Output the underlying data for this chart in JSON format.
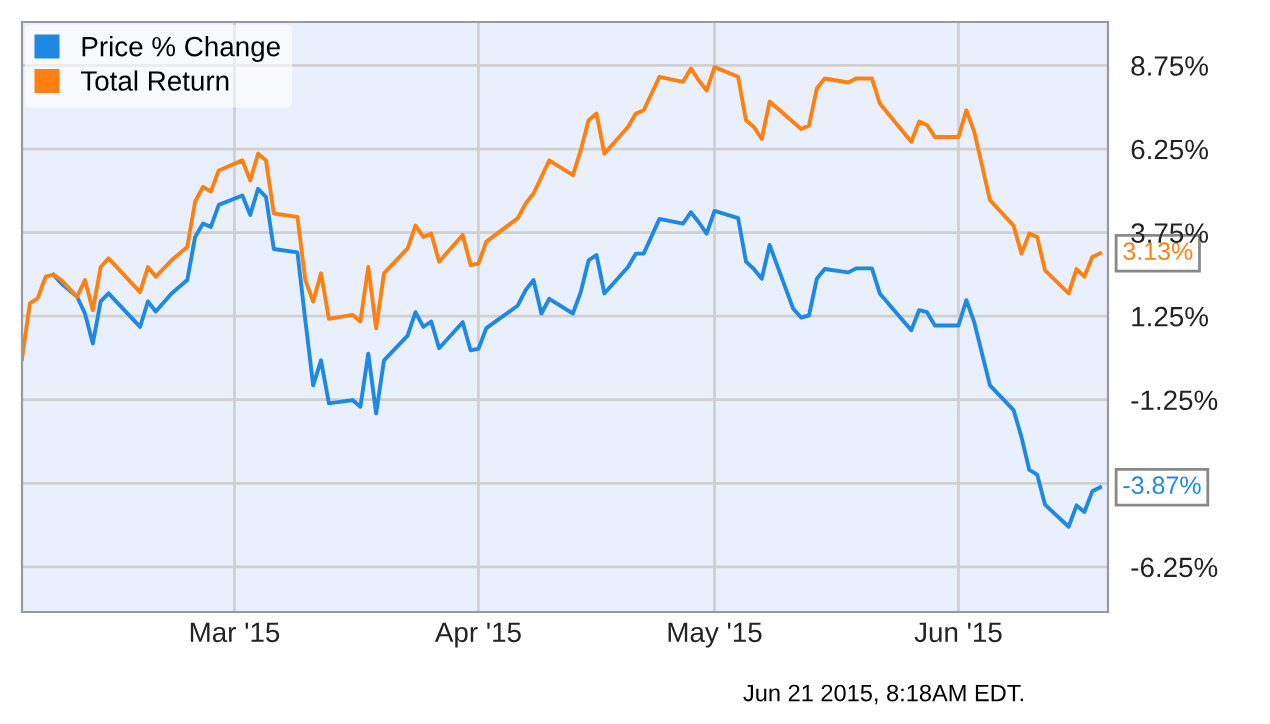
{
  "chart_data": {
    "type": "line",
    "series": [
      {
        "name": "Price % Change",
        "color": "#1e88e5",
        "x": [
          "2015-02-06",
          "2015-02-07",
          "2015-02-09",
          "2015-02-10",
          "2015-02-11",
          "2015-02-12",
          "2015-02-13",
          "2015-02-15",
          "2015-02-17",
          "2015-02-18",
          "2015-02-19",
          "2015-02-21",
          "2015-02-23",
          "2015-02-24",
          "2015-02-25",
          "2015-02-26",
          "2015-02-27",
          "2015-03-02",
          "2015-03-03",
          "2015-03-04",
          "2015-03-05",
          "2015-03-06",
          "2015-03-09",
          "2015-03-10",
          "2015-03-11",
          "2015-03-12",
          "2015-03-13",
          "2015-03-16",
          "2015-03-17",
          "2015-03-18",
          "2015-03-19",
          "2015-03-20",
          "2015-03-23",
          "2015-03-24",
          "2015-03-25",
          "2015-03-26",
          "2015-03-27",
          "2015-03-30",
          "2015-03-31",
          "2015-04-01",
          "2015-04-02",
          "2015-04-06",
          "2015-04-07",
          "2015-04-08",
          "2015-04-09",
          "2015-04-10",
          "2015-04-13",
          "2015-04-14",
          "2015-04-15",
          "2015-04-16",
          "2015-04-17",
          "2015-04-20",
          "2015-04-21",
          "2015-04-22",
          "2015-04-24",
          "2015-04-27",
          "2015-04-28",
          "2015-04-29",
          "2015-04-30",
          "2015-05-01",
          "2015-05-04",
          "2015-05-05",
          "2015-05-06",
          "2015-05-07",
          "2015-05-08",
          "2015-05-11",
          "2015-05-12",
          "2015-05-13",
          "2015-05-14",
          "2015-05-15",
          "2015-05-18",
          "2015-05-19",
          "2015-05-21",
          "2015-05-22",
          "2015-05-26",
          "2015-05-27",
          "2015-05-28",
          "2015-05-29",
          "2015-06-01",
          "2015-06-02",
          "2015-06-03",
          "2015-06-05",
          "2015-06-08",
          "2015-06-09",
          "2015-06-10",
          "2015-06-11",
          "2015-06-12",
          "2015-06-15",
          "2015-06-16",
          "2015-06-17",
          "2015-06-18",
          "2015-06-19"
        ],
        "values": [
          2.49,
          2.23,
          1.83,
          1.33,
          0.43,
          1.69,
          1.93,
          1.43,
          0.93,
          1.69,
          1.39,
          1.93,
          2.33,
          3.62,
          4.02,
          3.92,
          4.58,
          4.86,
          4.28,
          5.06,
          4.82,
          3.26,
          3.16,
          1.13,
          -0.82,
          -0.07,
          -1.36,
          -1.26,
          -1.46,
          0.13,
          -1.66,
          -0.07,
          0.67,
          1.37,
          0.93,
          1.09,
          0.29,
          1.07,
          0.23,
          0.27,
          0.89,
          1.57,
          2.03,
          2.33,
          1.33,
          1.77,
          1.33,
          1.97,
          2.92,
          3.08,
          1.93,
          2.72,
          3.12,
          3.12,
          4.16,
          4.02,
          4.36,
          4.06,
          3.72,
          4.4,
          4.18,
          2.88,
          2.66,
          2.37,
          3.38,
          1.47,
          1.21,
          1.27,
          2.37,
          2.66,
          2.56,
          2.68,
          2.68,
          1.93,
          0.83,
          1.43,
          1.37,
          0.97,
          0.97,
          1.73,
          1.07,
          -0.82,
          -1.56,
          -2.36,
          -3.35,
          -3.49,
          -4.39,
          -5.05,
          -4.41,
          -4.61,
          -3.99,
          -3.87
        ]
      },
      {
        "name": "Total Return",
        "color": "#ff8011",
        "x": [
          "2015-02-02",
          "2015-02-03",
          "2015-02-04",
          "2015-02-05",
          "2015-02-06",
          "2015-02-07",
          "2015-02-09",
          "2015-02-10",
          "2015-02-11",
          "2015-02-12",
          "2015-02-13",
          "2015-02-17",
          "2015-02-18",
          "2015-02-19",
          "2015-02-21",
          "2015-02-23",
          "2015-02-24",
          "2015-02-25",
          "2015-02-26",
          "2015-02-27",
          "2015-03-02",
          "2015-03-03",
          "2015-03-04",
          "2015-03-05",
          "2015-03-06",
          "2015-03-09",
          "2015-03-10",
          "2015-03-11",
          "2015-03-12",
          "2015-03-13",
          "2015-03-16",
          "2015-03-17",
          "2015-03-18",
          "2015-03-19",
          "2015-03-20",
          "2015-03-23",
          "2015-03-24",
          "2015-03-25",
          "2015-03-26",
          "2015-03-27",
          "2015-03-30",
          "2015-03-31",
          "2015-04-01",
          "2015-04-02",
          "2015-04-06",
          "2015-04-07",
          "2015-04-08",
          "2015-04-09",
          "2015-04-10",
          "2015-04-13",
          "2015-04-14",
          "2015-04-15",
          "2015-04-16",
          "2015-04-17",
          "2015-04-20",
          "2015-04-21",
          "2015-04-22",
          "2015-04-24",
          "2015-04-27",
          "2015-04-28",
          "2015-04-29",
          "2015-04-30",
          "2015-05-01",
          "2015-05-04",
          "2015-05-05",
          "2015-05-06",
          "2015-05-07",
          "2015-05-08",
          "2015-05-12",
          "2015-05-13",
          "2015-05-14",
          "2015-05-15",
          "2015-05-18",
          "2015-05-19",
          "2015-05-21",
          "2015-05-22",
          "2015-05-26",
          "2015-05-27",
          "2015-05-28",
          "2015-05-29",
          "2015-06-01",
          "2015-06-02",
          "2015-06-03",
          "2015-06-05",
          "2015-06-08",
          "2015-06-09",
          "2015-06-10",
          "2015-06-11",
          "2015-06-12",
          "2015-06-15",
          "2015-06-16",
          "2015-06-17",
          "2015-06-18",
          "2015-06-19"
        ],
        "values": [
          -0.03,
          1.63,
          1.79,
          2.43,
          2.49,
          2.33,
          1.83,
          2.33,
          1.43,
          2.72,
          2.98,
          1.97,
          2.72,
          2.43,
          2.92,
          3.32,
          4.68,
          5.12,
          4.98,
          5.61,
          5.91,
          5.31,
          6.11,
          5.91,
          4.32,
          4.22,
          2.33,
          1.69,
          2.53,
          1.17,
          1.29,
          1.09,
          2.72,
          0.89,
          2.53,
          3.28,
          3.96,
          3.62,
          3.72,
          2.88,
          3.68,
          2.78,
          2.82,
          3.48,
          4.18,
          4.62,
          4.92,
          5.41,
          5.91,
          5.47,
          6.21,
          7.11,
          7.31,
          6.11,
          6.91,
          7.31,
          7.41,
          8.41,
          8.26,
          8.66,
          8.3,
          8.0,
          8.7,
          8.41,
          7.11,
          6.91,
          6.55,
          7.67,
          6.85,
          6.95,
          8.06,
          8.36,
          8.24,
          8.36,
          8.36,
          7.61,
          6.47,
          7.07,
          6.97,
          6.61,
          6.61,
          7.41,
          6.77,
          4.72,
          3.96,
          3.12,
          3.72,
          3.62,
          2.62,
          1.93,
          2.66,
          2.43,
          3.02,
          3.13
        ]
      }
    ],
    "xlim": [
      "2015-02-02",
      "2015-06-20"
    ],
    "xticks": [
      {
        "value": "2015-03-01",
        "label": "Mar '15"
      },
      {
        "value": "2015-04-01",
        "label": "Apr '15"
      },
      {
        "value": "2015-05-01",
        "label": "May '15"
      },
      {
        "value": "2015-06-01",
        "label": "Jun '15"
      }
    ],
    "ylim": [
      -7.6,
      10.05
    ],
    "yticks": [
      {
        "value": -6.25,
        "label": "-6.25%"
      },
      {
        "value": -3.75,
        "label": null
      },
      {
        "value": -1.25,
        "label": "-1.25%"
      },
      {
        "value": 1.25,
        "label": "1.25%"
      },
      {
        "value": 3.75,
        "label": "3.75%"
      },
      {
        "value": 6.25,
        "label": "6.25%"
      },
      {
        "value": 8.75,
        "label": "8.75%"
      }
    ],
    "annotations": [
      {
        "text": "-3.87%",
        "x": "2015-06-19",
        "y": -3.87
      },
      {
        "text": "3.13%",
        "x": "2015-06-19",
        "y": 3.13
      },
      "Jun 21 2015, 8:18AM EDT."
    ],
    "grid": true,
    "legend": "top left",
    "marker": "none",
    "line_style": "solid"
  }
}
